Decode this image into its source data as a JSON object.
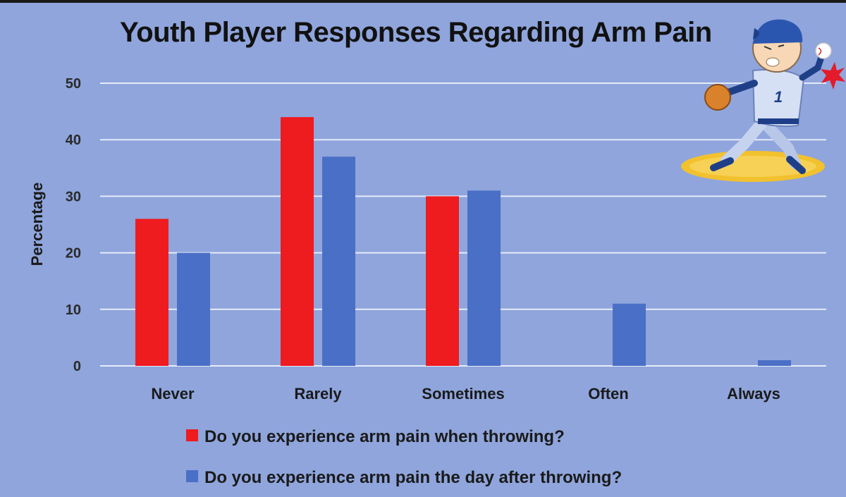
{
  "chart_data": {
    "type": "bar",
    "title": "Youth Player Responses Regarding Arm Pain",
    "xlabel": "",
    "ylabel": "Percentage",
    "categories": [
      "Never",
      "Rarely",
      "Sometimes",
      "Often",
      "Always"
    ],
    "series": [
      {
        "name": "Do you experience arm pain when throwing?",
        "values": [
          26,
          44,
          30,
          0,
          0
        ],
        "color": "#ee1b1f"
      },
      {
        "name": "Do you experience arm pain the day after throwing?",
        "values": [
          20,
          37,
          31,
          11,
          1
        ],
        "color": "#4a6fc6"
      }
    ],
    "ylim": [
      0,
      50
    ],
    "yticks": [
      0,
      10,
      20,
      30,
      40,
      50
    ],
    "grid": true,
    "legend_position": "bottom",
    "background": "#8fa5dc",
    "gridline_color": "#e6ebf7",
    "illustration": "baseball-pitcher-arm-pain-icon"
  }
}
